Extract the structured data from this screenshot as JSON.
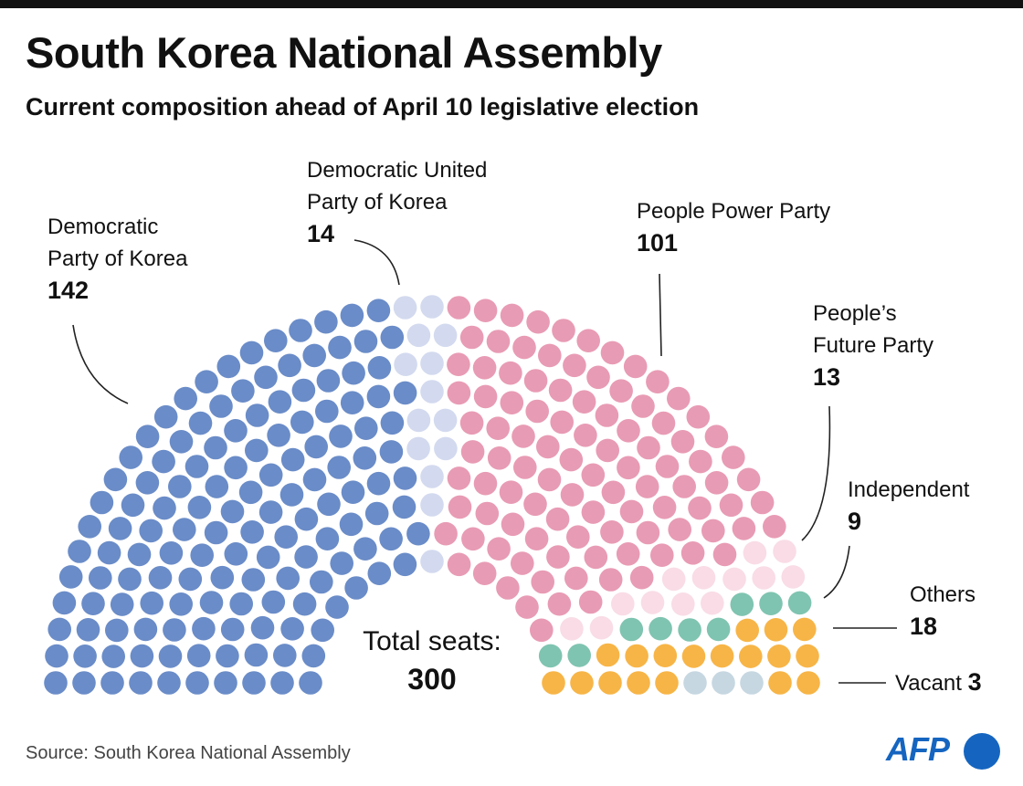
{
  "chart_data": {
    "type": "parliament",
    "title": "South Korea National Assembly",
    "subtitle": "Current composition ahead of April 10 legislative election",
    "total_label": "Total seats:",
    "total": 300,
    "series": [
      {
        "name": "Democratic Party of Korea",
        "value": 142,
        "color": "#6a8cc8"
      },
      {
        "name": "Democratic United Party of Korea",
        "value": 14,
        "color": "#d3daef"
      },
      {
        "name": "People Power Party",
        "value": 101,
        "color": "#e89bb4"
      },
      {
        "name": "People’s Future Party",
        "value": 13,
        "color": "#f9dce6"
      },
      {
        "name": "Independent",
        "value": 9,
        "color": "#7fc4b0"
      },
      {
        "name": "Others",
        "value": 18,
        "color": "#f7b547"
      },
      {
        "name": "Vacant",
        "value": 3,
        "color": "#c6d7e1"
      }
    ],
    "rows": 10
  },
  "labels": {
    "dpk_1": "Democratic",
    "dpk_2": "Party of Korea",
    "dpk_v": "142",
    "dup_1": "Democratic United",
    "dup_2": "Party of Korea",
    "dup_v": "14",
    "ppp_1": "People Power Party",
    "ppp_v": "101",
    "pfp_1": "People’s",
    "pfp_2": "Future Party",
    "pfp_v": "13",
    "ind_1": "Independent",
    "ind_v": "9",
    "oth_1": "Others",
    "oth_v": "18",
    "vac_1": "Vacant",
    "vac_v": "3"
  },
  "footer": {
    "source": "Source: South Korea National Assembly",
    "logo": "AFP"
  }
}
